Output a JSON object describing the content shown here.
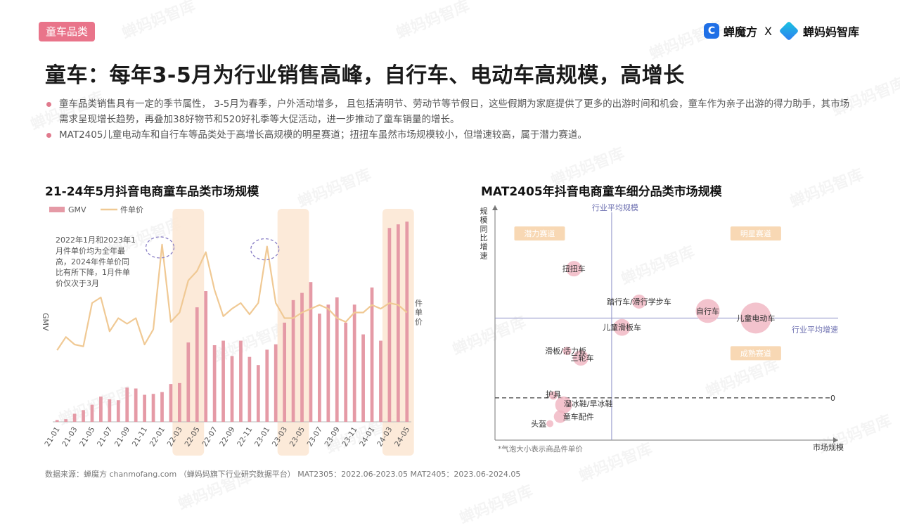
{
  "header": {
    "tag": "童车品类",
    "brand_left": "蝉魔方",
    "brand_sep": "X",
    "brand_right": "蝉妈妈智库",
    "title": "童车：每年3-5月为行业销售高峰，自行车、电动车高规模，高增长"
  },
  "bullets": [
    "童车品类销售具有一定的季节属性， 3-5月为春季，户外活动增多， 且包括清明节、劳动节等节假日，这些假期为家庭提供了更多的出游时间和机会，童车作为亲子出游的得力助手，其市场需求呈现增长趋势，再叠加38好物节和520好礼季等大促活动，进一步推动了童车销量的增长。",
    "MAT2405儿童电动车和自行车等品类处于高增长高规模的明星赛道；扭扭车虽然市场规模较小，但增速较高，属于潜力赛道。"
  ],
  "watermark": "蝉妈妈智库",
  "source": "数据来源：蝉魔方 chanmofang.com （蝉妈妈旗下行业研究数据平台） MAT2305：2022.06-2023.05 MAT2405：2023.06-2024.05",
  "colors": {
    "gmv": "#e59aa6",
    "price": "#f0c994",
    "highlight": "#fbe6d2",
    "accent": "#e9748a",
    "quad_label": "#f8d8b4",
    "bubble": "#f0b4c0"
  },
  "chart_data": [
    {
      "type": "bar+line",
      "title": "21-24年5月抖音电商童车品类市场规模",
      "legend": [
        "GMV",
        "件单价"
      ],
      "ylabel_left": "GMV",
      "ylabel_right": "件单价",
      "annotation": "2022年1月和2023年1月件单价均为全年最高，2024年件单价同比有所下降，1月件单价仅次于3月",
      "categories": [
        "21-01",
        "21-02",
        "21-03",
        "21-04",
        "21-05",
        "21-06",
        "21-07",
        "21-08",
        "21-09",
        "21-10",
        "21-11",
        "21-12",
        "22-01",
        "22-02",
        "22-03",
        "22-04",
        "22-05",
        "22-06",
        "22-07",
        "22-08",
        "22-09",
        "22-10",
        "22-11",
        "22-12",
        "23-01",
        "23-02",
        "23-03",
        "23-04",
        "23-05",
        "23-06",
        "23-07",
        "23-08",
        "23-09",
        "23-10",
        "23-11",
        "23-12",
        "24-01",
        "24-02",
        "24-03",
        "24-04",
        "24-05"
      ],
      "tick_labels": [
        "21-01",
        "21-03",
        "21-05",
        "21-07",
        "21-09",
        "21-11",
        "22-01",
        "22-03",
        "22-05",
        "22-07",
        "22-09",
        "22-11",
        "23-01",
        "23-03",
        "23-05",
        "23-07",
        "23-09",
        "23-11",
        "24-01",
        "24-03",
        "24-05"
      ],
      "highlight_ranges": [
        [
          "22-03",
          "22-05"
        ],
        [
          "23-03",
          "23-05"
        ],
        [
          "24-03",
          "24-05"
        ]
      ],
      "gmv": [
        2,
        3,
        9,
        13,
        19,
        28,
        25,
        24,
        38,
        37,
        30,
        31,
        33,
        42,
        43,
        88,
        127,
        145,
        85,
        90,
        73,
        90,
        72,
        63,
        80,
        86,
        110,
        135,
        143,
        155,
        120,
        130,
        138,
        110,
        130,
        97,
        149,
        90,
        215,
        219,
        222
      ],
      "gmv_max": 230,
      "price": [
        38,
        45,
        41,
        40,
        63,
        66,
        48,
        55,
        52,
        55,
        41,
        49,
        94,
        53,
        58,
        75,
        80,
        90,
        70,
        56,
        60,
        63,
        57,
        63,
        93,
        63,
        55,
        55,
        58,
        60,
        62,
        60,
        55,
        53,
        58,
        58,
        62,
        60,
        63,
        62,
        58
      ],
      "price_max": 110
    },
    {
      "type": "bubble",
      "title": "MAT2405年抖音电商童车细分品类市场规模",
      "xlabel": "市场规模",
      "ylabel": "规模同比增速",
      "x_ref_label": "行业平均规模",
      "y_ref_label": "行业平均增速",
      "zero_label": "0",
      "quadrants": [
        "潜力赛道",
        "明星赛道",
        "成熟赛道"
      ],
      "note": "*气泡大小表示商品件单价",
      "points": [
        {
          "name": "扭扭车",
          "x": 0.23,
          "y": 0.73,
          "size": 11
        },
        {
          "name": "踏行车/滑行学步车",
          "x": 0.42,
          "y": 0.59,
          "size": 10
        },
        {
          "name": "自行车",
          "x": 0.62,
          "y": 0.55,
          "size": 17
        },
        {
          "name": "儿童电动车",
          "x": 0.76,
          "y": 0.52,
          "size": 22
        },
        {
          "name": "儿童滑板车",
          "x": 0.37,
          "y": 0.48,
          "size": 12
        },
        {
          "name": "滑板/活力板",
          "x": 0.21,
          "y": 0.38,
          "size": 6
        },
        {
          "name": "三轮车",
          "x": 0.25,
          "y": 0.35,
          "size": 11
        },
        {
          "name": "护具",
          "x": 0.17,
          "y": 0.19,
          "size": 6
        },
        {
          "name": "溜冰鞋/旱冰鞋",
          "x": 0.2,
          "y": 0.15,
          "size": 12
        },
        {
          "name": "头盔",
          "x": 0.16,
          "y": 0.07,
          "size": 5
        },
        {
          "name": "童车配件",
          "x": 0.19,
          "y": 0.1,
          "size": 9
        }
      ]
    }
  ]
}
